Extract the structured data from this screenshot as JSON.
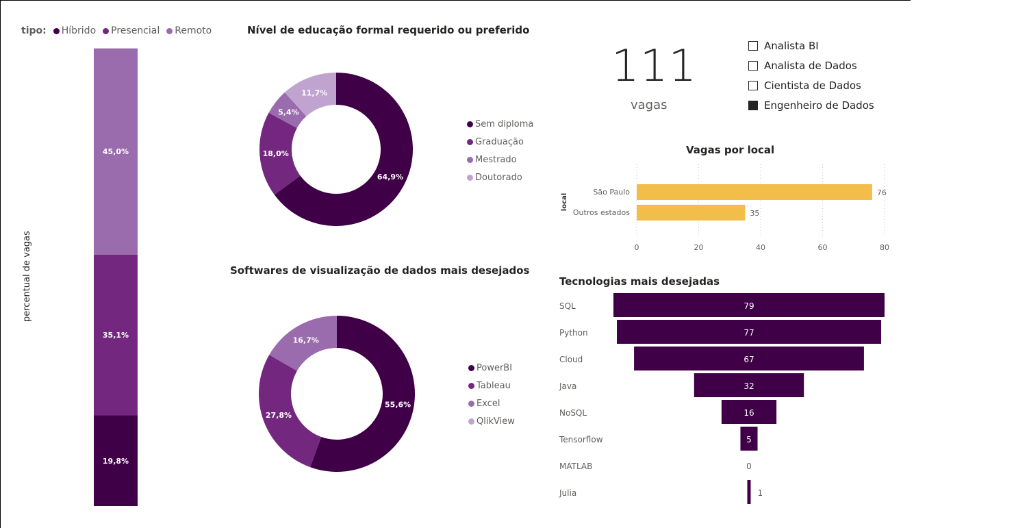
{
  "colors": {
    "Híbrido": "#3f0047",
    "Presencial": "#74277f",
    "Remoto": "#9a6cad",
    "light": "#c1a3d0",
    "bar_yellow": "#f2bd49",
    "funnel": "#3f0047"
  },
  "stacked": {
    "legend_key": "tipo:",
    "y_axis_title": "percentual de vagas"
  },
  "kpi": {
    "value": "111",
    "label": "vagas"
  },
  "slicer": {
    "items": [
      {
        "label": "Analista BI",
        "checked": false
      },
      {
        "label": "Analista de Dados",
        "checked": false
      },
      {
        "label": "Cientista de Dados",
        "checked": false
      },
      {
        "label": "Engenheiro de Dados",
        "checked": true
      }
    ]
  },
  "chart_data": [
    {
      "type": "bar",
      "orientation": "stacked-100",
      "ylabel": "percentual de vagas",
      "legend_title": "tipo:",
      "series": [
        {
          "name": "Híbrido",
          "values": [
            19.8
          ],
          "label": "19,8%"
        },
        {
          "name": "Presencial",
          "values": [
            35.1
          ],
          "label": "35,1%"
        },
        {
          "name": "Remoto",
          "values": [
            45.0
          ],
          "label": "45,0%"
        }
      ]
    },
    {
      "type": "pie",
      "title": "Nível de educação formal requerido ou preferido",
      "categories": [
        "Sem diploma",
        "Graduação",
        "Mestrado",
        "Doutorado"
      ],
      "values": [
        64.9,
        18.0,
        5.4,
        11.7
      ],
      "labels": [
        "64,9%",
        "18,0%",
        "5,4%",
        "11,7%"
      ]
    },
    {
      "type": "pie",
      "title": "Softwares de visualização de dados mais desejados",
      "categories": [
        "PowerBI",
        "Tableau",
        "Excel",
        "QlikView"
      ],
      "values": [
        55.6,
        27.8,
        16.7,
        0
      ],
      "labels": [
        "55,6%",
        "27,8%",
        "16,7%",
        ""
      ]
    },
    {
      "type": "bar",
      "orientation": "horizontal",
      "title": "Vagas por local",
      "ylabel": "local",
      "categories": [
        "São Paulo",
        "Outros estados"
      ],
      "values": [
        76,
        35
      ],
      "xlim": [
        0,
        80
      ],
      "xticks": [
        "0",
        "20",
        "40",
        "60",
        "80"
      ],
      "grid": true
    },
    {
      "type": "bar",
      "orientation": "funnel",
      "title": "Tecnologias mais desejadas",
      "categories": [
        "SQL",
        "Python",
        "Cloud",
        "Java",
        "NoSQL",
        "Tensorflow",
        "MATLAB",
        "Julia"
      ],
      "values": [
        79,
        77,
        67,
        32,
        16,
        5,
        0,
        1
      ]
    }
  ]
}
